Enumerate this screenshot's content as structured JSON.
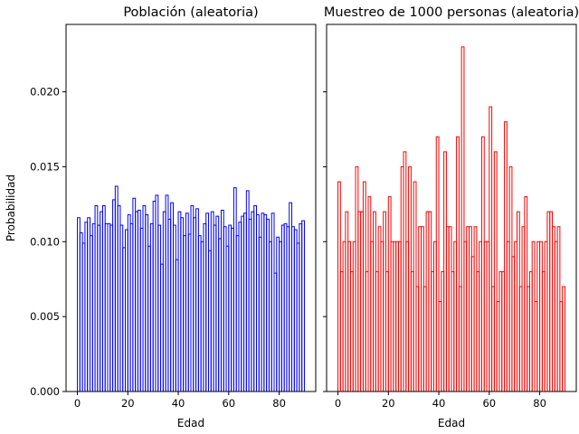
{
  "chart_data": [
    {
      "type": "bar",
      "style": "step-histogram",
      "title": "Población (aleatoria)",
      "xlabel": "Edad",
      "ylabel": "Probabilidad",
      "xlim": [
        -4.5,
        94.5
      ],
      "ylim": [
        0,
        0.0245
      ],
      "xticks": [
        0,
        20,
        40,
        60,
        80
      ],
      "yticks": [
        0.0,
        0.005,
        0.01,
        0.015,
        0.02
      ],
      "ytick_labels": [
        "0.000",
        "0.005",
        "0.010",
        "0.015",
        "0.020"
      ],
      "color": "#0000ff",
      "bin_start": 0,
      "bin_width": 1,
      "values": [
        0.0116,
        0.0106,
        0.0099,
        0.0113,
        0.0116,
        0.0104,
        0.0112,
        0.0124,
        0.0111,
        0.012,
        0.0124,
        0.0112,
        0.0112,
        0.0111,
        0.0128,
        0.0137,
        0.0124,
        0.0111,
        0.0096,
        0.0108,
        0.0118,
        0.0112,
        0.0129,
        0.012,
        0.0121,
        0.0109,
        0.0124,
        0.0118,
        0.0097,
        0.0112,
        0.0127,
        0.0131,
        0.0111,
        0.0085,
        0.012,
        0.0131,
        0.0115,
        0.0126,
        0.0111,
        0.0088,
        0.012,
        0.0116,
        0.0104,
        0.0119,
        0.0105,
        0.0124,
        0.0116,
        0.0122,
        0.0104,
        0.01,
        0.0112,
        0.0119,
        0.0094,
        0.012,
        0.0111,
        0.0117,
        0.0102,
        0.0121,
        0.011,
        0.0097,
        0.0111,
        0.0109,
        0.0136,
        0.0104,
        0.0113,
        0.0117,
        0.0119,
        0.0134,
        0.0115,
        0.012,
        0.0124,
        0.0118,
        0.0103,
        0.0119,
        0.0118,
        0.0115,
        0.01,
        0.0119,
        0.0079,
        0.0103,
        0.01,
        0.0111,
        0.0112,
        0.011,
        0.0126,
        0.011,
        0.0108,
        0.0099,
        0.0112,
        0.0114
      ]
    },
    {
      "type": "bar",
      "style": "step-histogram",
      "title": "Muestreo de 1000 personas (aleatoria)",
      "xlabel": "Edad",
      "ylabel": "",
      "xlim": [
        -4.5,
        94.5
      ],
      "ylim": [
        0,
        0.0245
      ],
      "xticks": [
        0,
        20,
        40,
        60,
        80
      ],
      "sharey": true,
      "color": "#ff0000",
      "bin_start": 0,
      "bin_width": 1,
      "values": [
        0.014,
        0.008,
        0.01,
        0.012,
        0.01,
        0.008,
        0.01,
        0.015,
        0.012,
        0.012,
        0.014,
        0.008,
        0.013,
        0.01,
        0.012,
        0.008,
        0.011,
        0.01,
        0.012,
        0.008,
        0.013,
        0.01,
        0.01,
        0.01,
        0.01,
        0.015,
        0.016,
        0.01,
        0.015,
        0.008,
        0.014,
        0.007,
        0.011,
        0.011,
        0.007,
        0.012,
        0.012,
        0.008,
        0.01,
        0.017,
        0.006,
        0.008,
        0.016,
        0.011,
        0.011,
        0.008,
        0.01,
        0.017,
        0.007,
        0.023,
        0.01,
        0.011,
        0.011,
        0.009,
        0.011,
        0.008,
        0.01,
        0.017,
        0.01,
        0.01,
        0.019,
        0.007,
        0.016,
        0.006,
        0.008,
        0.008,
        0.018,
        0.01,
        0.015,
        0.009,
        0.01,
        0.012,
        0.007,
        0.011,
        0.013,
        0.007,
        0.008,
        0.01,
        0.006,
        0.01,
        0.01,
        0.008,
        0.01,
        0.012,
        0.012,
        0.011,
        0.01,
        0.011,
        0.006,
        0.007
      ]
    }
  ]
}
